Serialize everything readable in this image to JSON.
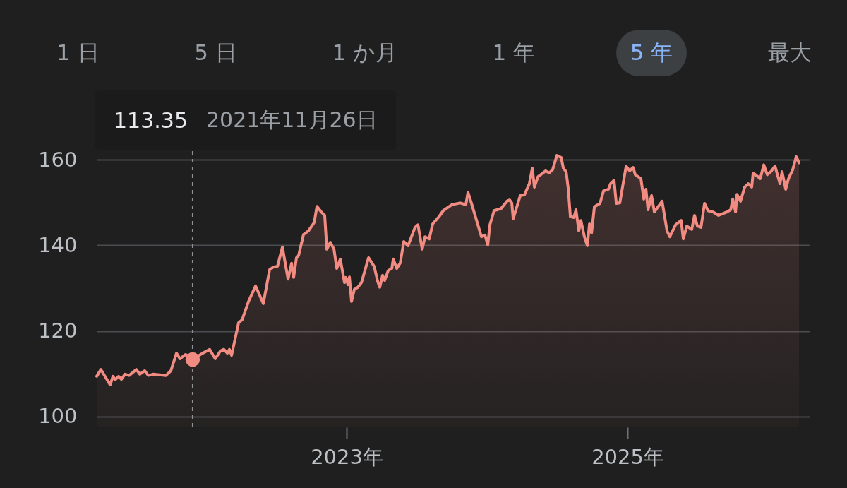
{
  "chart_data": {
    "type": "area",
    "annotations": [
      "1 日",
      "5 日",
      "1 か月",
      "1 年",
      "5 年",
      "最大",
      "113.35"
    ],
    "x": [
      2021.221,
      2021.251,
      2021.317,
      2021.337,
      2021.352,
      2021.377,
      2021.397,
      2021.422,
      2021.452,
      2021.503,
      2021.528,
      2021.563,
      2021.588,
      2021.623,
      2021.714,
      2021.749,
      2021.789,
      2021.814,
      2021.854,
      2021.904,
      2021.975,
      2022.025,
      2022.065,
      2022.101,
      2022.126,
      2022.151,
      2022.166,
      2022.181,
      2022.231,
      2022.256,
      2022.302,
      2022.352,
      2022.407,
      2022.452,
      2022.477,
      2022.508,
      2022.543,
      2022.583,
      2022.608,
      2022.623,
      2022.643,
      2022.658,
      2022.693,
      2022.729,
      2022.769,
      2022.789,
      2022.819,
      2022.844,
      2022.859,
      2022.884,
      2022.91,
      2022.93,
      2022.955,
      2022.985,
      2022.995,
      2023.01,
      2023.02,
      2023.035,
      2023.055,
      2023.08,
      2023.106,
      2023.156,
      2023.196,
      2023.221,
      2023.236,
      2023.256,
      2023.271,
      2023.296,
      2023.322,
      2023.332,
      2023.357,
      2023.382,
      2023.407,
      2023.437,
      2023.487,
      2023.508,
      2023.538,
      2023.558,
      2023.588,
      2023.613,
      2023.658,
      2023.688,
      2023.749,
      2023.809,
      2023.849,
      2023.864,
      2023.889,
      2023.96,
      2023.985,
      2024.005,
      2024.02,
      2024.05,
      2024.1,
      2024.141,
      2024.161,
      2024.176,
      2024.186,
      2024.236,
      2024.266,
      2024.301,
      2024.322,
      2024.337,
      2024.362,
      2024.417,
      2024.442,
      2024.467,
      2024.497,
      2024.528,
      2024.543,
      2024.563,
      2024.578,
      2024.593,
      2024.618,
      2024.633,
      2024.653,
      2024.668,
      2024.693,
      2024.714,
      2024.729,
      2024.744,
      2024.764,
      2024.804,
      2024.829,
      2024.864,
      2024.879,
      2024.904,
      2024.92,
      2024.945,
      2024.99,
      2025.015,
      2025.04,
      2025.055,
      2025.095,
      2025.116,
      2025.131,
      2025.146,
      2025.171,
      2025.191,
      2025.246,
      2025.281,
      2025.301,
      2025.342,
      2025.382,
      2025.397,
      2025.422,
      2025.457,
      2025.477,
      2025.497,
      2025.523,
      2025.548,
      2025.573,
      2025.608,
      2025.648,
      2025.708,
      2025.734,
      2025.749,
      2025.769,
      2025.779,
      2025.804,
      2025.834,
      2025.859,
      2025.884,
      2025.894,
      2025.945,
      2025.97,
      2025.995,
      2026.02,
      2026.05,
      2026.085,
      2026.1,
      2026.126,
      2026.146,
      2026.176,
      2026.201,
      2026.221
    ],
    "series": [
      {
        "color": "#f28b82",
        "values": [
          109.4,
          111.0,
          107.4,
          109.4,
          108.6,
          109.4,
          108.7,
          109.9,
          109.6,
          111.0,
          109.9,
          110.7,
          109.6,
          109.9,
          109.6,
          110.7,
          114.8,
          113.5,
          114.5,
          113.35,
          114.8,
          115.7,
          113.5,
          115.3,
          115.7,
          114.8,
          115.7,
          114.3,
          121.9,
          122.6,
          126.9,
          130.5,
          126.4,
          134.3,
          134.9,
          135.1,
          139.6,
          132.1,
          135.8,
          132.5,
          137.1,
          137.6,
          142.5,
          143.4,
          145.3,
          149.1,
          147.8,
          147.0,
          139.1,
          140.7,
          139.1,
          134.6,
          136.8,
          131.3,
          132.5,
          130.8,
          132.6,
          126.9,
          129.7,
          130.2,
          131.3,
          137.1,
          135.1,
          131.6,
          130.2,
          133.0,
          131.8,
          134.1,
          134.6,
          136.8,
          134.6,
          135.9,
          140.9,
          139.9,
          144.2,
          144.8,
          139.1,
          142.0,
          141.5,
          145.0,
          146.7,
          148.1,
          149.5,
          149.9,
          149.5,
          152.4,
          149.8,
          142.0,
          142.4,
          140.1,
          144.8,
          148.1,
          148.6,
          150.3,
          150.6,
          149.9,
          146.2,
          151.6,
          151.8,
          154.4,
          158.0,
          153.6,
          156.0,
          157.4,
          156.9,
          157.7,
          161.0,
          160.5,
          158.0,
          157.2,
          153.2,
          146.7,
          146.5,
          148.3,
          143.4,
          145.8,
          142.0,
          139.9,
          145.0,
          142.9,
          149.0,
          149.8,
          152.7,
          153.1,
          154.4,
          155.2,
          149.8,
          149.9,
          158.5,
          157.4,
          158.2,
          156.5,
          155.6,
          150.8,
          153.1,
          148.3,
          151.6,
          147.8,
          150.3,
          143.4,
          142.0,
          144.8,
          145.8,
          141.5,
          144.5,
          143.7,
          147.0,
          144.5,
          144.2,
          149.8,
          148.1,
          147.8,
          147.0,
          147.8,
          148.3,
          150.8,
          147.8,
          151.9,
          150.3,
          153.6,
          154.4,
          153.6,
          156.9,
          155.6,
          158.8,
          156.5,
          157.2,
          158.5,
          154.4,
          157.2,
          153.1,
          155.6,
          157.7,
          160.7,
          159.3
        ]
      }
    ],
    "xlim": [
      2021.221,
      2026.296
    ],
    "ylim": [
      97.5,
      162
    ],
    "xticks": [
      {
        "value": 2023,
        "label": "2023年"
      },
      {
        "value": 2025,
        "label": "2025年"
      }
    ],
    "yticks": [
      100,
      120,
      140,
      160
    ],
    "grid": "y",
    "ref_lines": [
      {
        "axis": "x",
        "value": 2021.904,
        "label": "2021年11月26日",
        "line_style": "dashed"
      }
    ]
  }
}
